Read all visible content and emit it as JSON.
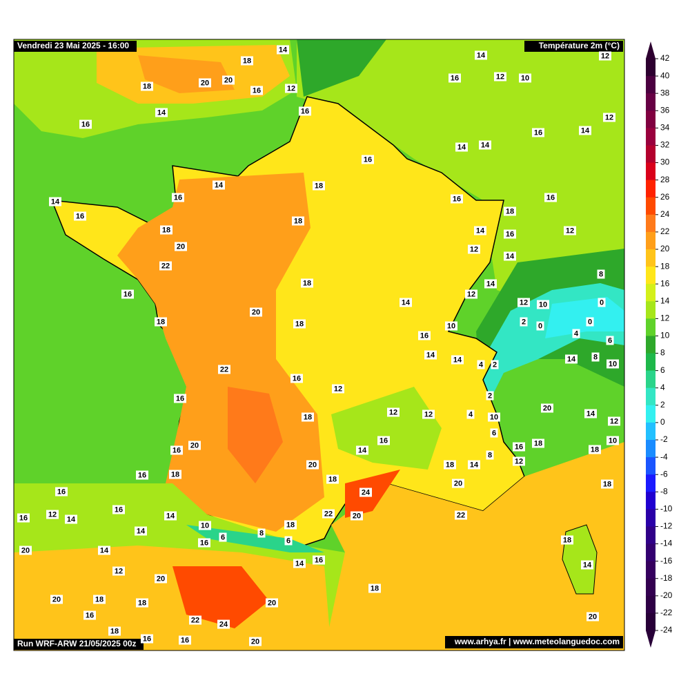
{
  "header": {
    "left": "Vendredi 23 Mai 2025 - 16:00",
    "right": "Température 2m (°C)"
  },
  "footer": {
    "left": "Run WRF-ARW 21/05/2025 00z",
    "right": "www.arhya.fr | www.meteolanguedoc.com"
  },
  "colorbar": {
    "ticks": [
      42,
      40,
      38,
      36,
      34,
      32,
      30,
      28,
      26,
      24,
      22,
      20,
      18,
      16,
      14,
      12,
      10,
      8,
      6,
      4,
      2,
      0,
      -2,
      -4,
      -6,
      -8,
      -10,
      -12,
      -14,
      -16,
      -18,
      -20,
      -22,
      -24
    ],
    "colors": [
      "#2d0030",
      "#4b0040",
      "#660044",
      "#800040",
      "#99003d",
      "#b3002d",
      "#d9001a",
      "#ff2200",
      "#ff4a00",
      "#ff7a1a",
      "#ff9f1a",
      "#ffc41a",
      "#ffe61a",
      "#d4f01a",
      "#a6e61a",
      "#5fd22a",
      "#2ea82a",
      "#1eb84a",
      "#2ad48a",
      "#33e6c4",
      "#33f0f0",
      "#22c0ff",
      "#1a8cff",
      "#1a55ff",
      "#1a1aff",
      "#2000d0",
      "#2a00a8",
      "#300088",
      "#330070",
      "#35005e",
      "#330050",
      "#2e0045",
      "#280038"
    ]
  },
  "map_labels": [
    14,
    18,
    20,
    20,
    16,
    12,
    18,
    14,
    16,
    16,
    14,
    12,
    16,
    12,
    10,
    12,
    16,
    14,
    14,
    14,
    16,
    14,
    18,
    16,
    14,
    16,
    16,
    16,
    18,
    18,
    18,
    14,
    16,
    12,
    20,
    12,
    14,
    22,
    8,
    14,
    18,
    16,
    12,
    14,
    12,
    10,
    0,
    20,
    18,
    18,
    2,
    0,
    0,
    10,
    4,
    16,
    6,
    14,
    14,
    4,
    2,
    8,
    14,
    10,
    22,
    16,
    12,
    2,
    16,
    20,
    14,
    12,
    18,
    12,
    12,
    4,
    10,
    6,
    20,
    16,
    10,
    16,
    14,
    16,
    18,
    18,
    8,
    12,
    20,
    18,
    14,
    16,
    18,
    18,
    20,
    18,
    16,
    24,
    16,
    12,
    14,
    16,
    14,
    22,
    20,
    22,
    10,
    18,
    14,
    6,
    8,
    6,
    16,
    18,
    20,
    14,
    14,
    16,
    14,
    12,
    20,
    18,
    20,
    18,
    18,
    20,
    16,
    18,
    22,
    24,
    20,
    16,
    16,
    20
  ]
}
